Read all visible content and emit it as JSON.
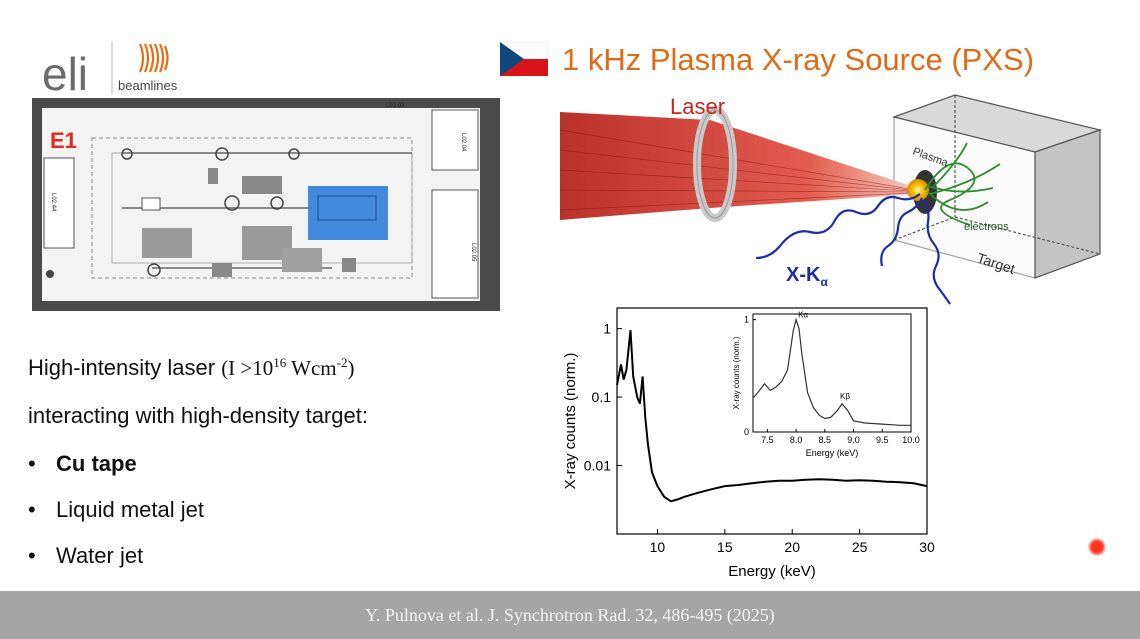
{
  "logo": {
    "brand": "eli",
    "subtitle": "beamlines"
  },
  "title": {
    "text": "1 kHz Plasma X-ray Source (PXS)"
  },
  "floorplan": {
    "hall_label": "E1",
    "room_labels": [
      "L02.03",
      "L02.04",
      "L02.44",
      "L02.05"
    ]
  },
  "diagram": {
    "laser_label": "Laser",
    "plasma_label": "Plasma",
    "electrons_label": "electrons",
    "target_label": "Target",
    "xray_label_main": "X-K",
    "xray_label_sub": "α",
    "colors": {
      "laser": "#c8231c",
      "xray": "#1f2aa8",
      "electrons": "#2e8b2e",
      "plasma": "#f2c200"
    }
  },
  "text": {
    "line1_prefix": "High-intensity laser ",
    "line1_formula_a": "(I >10",
    "line1_sup1": "16",
    "line1_formula_b": " Wcm",
    "line1_sup2": "-2",
    "line1_formula_c": ")",
    "line2": "interacting with high-density target:",
    "bullets": [
      "Cu tape",
      "Liquid metal jet",
      "Water jet"
    ],
    "bullet_char": "•"
  },
  "footer": {
    "citation": "Y. Pulnova et al. J. Synchrotron Rad. 32, 486-495 (2025)"
  },
  "chart_data": [
    {
      "type": "line",
      "xlabel": "Energy (keV)",
      "ylabel": "X-ray counts (norm.)",
      "yscale": "log",
      "xlim": [
        7,
        30
      ],
      "ylim": [
        0.001,
        2
      ],
      "xticks": [
        "10",
        "15",
        "20",
        "25",
        "30"
      ],
      "yticks": [
        "1",
        "0.1",
        "0.01"
      ],
      "series": [
        {
          "x": [
            7.0,
            7.3,
            7.5,
            7.7,
            8.0,
            8.2,
            8.5,
            8.7,
            8.9,
            9.1,
            9.3,
            9.6,
            10.0,
            10.5,
            11.0,
            11.5,
            12.0,
            13.0,
            14.0,
            15.0,
            16.0,
            17.0,
            18.0,
            19.0,
            20.0,
            21.0,
            22.0,
            23.0,
            24.0,
            25.0,
            26.0,
            27.0,
            28.0,
            29.0,
            30.0
          ],
          "y": [
            0.15,
            0.3,
            0.18,
            0.25,
            0.95,
            0.2,
            0.1,
            0.08,
            0.2,
            0.05,
            0.02,
            0.008,
            0.005,
            0.0035,
            0.003,
            0.0032,
            0.0035,
            0.004,
            0.0045,
            0.005,
            0.0052,
            0.0055,
            0.0058,
            0.006,
            0.006,
            0.0062,
            0.0063,
            0.0062,
            0.006,
            0.0061,
            0.006,
            0.0058,
            0.0057,
            0.0055,
            0.005
          ]
        }
      ]
    },
    {
      "type": "line",
      "xlabel": "Energy (keV)",
      "ylabel": "X-ray counts (norm.)",
      "xlim": [
        7.25,
        10.0
      ],
      "ylim": [
        0,
        1.05
      ],
      "xticks": [
        "7.5",
        "8.0",
        "8.5",
        "9.0",
        "9.5",
        "10.0"
      ],
      "yticks": [
        "0",
        "1"
      ],
      "annotations": [
        "Kα",
        "Kβ"
      ],
      "series": [
        {
          "x": [
            7.25,
            7.35,
            7.45,
            7.55,
            7.65,
            7.75,
            7.85,
            7.9,
            7.95,
            8.0,
            8.05,
            8.1,
            8.2,
            8.3,
            8.4,
            8.5,
            8.6,
            8.7,
            8.8,
            8.9,
            9.0,
            9.2,
            9.5,
            9.8,
            10.0
          ],
          "y": [
            0.3,
            0.36,
            0.43,
            0.37,
            0.4,
            0.45,
            0.55,
            0.72,
            0.9,
            1.0,
            0.92,
            0.7,
            0.35,
            0.22,
            0.15,
            0.12,
            0.13,
            0.18,
            0.25,
            0.19,
            0.1,
            0.08,
            0.07,
            0.06,
            0.06
          ]
        }
      ]
    }
  ]
}
